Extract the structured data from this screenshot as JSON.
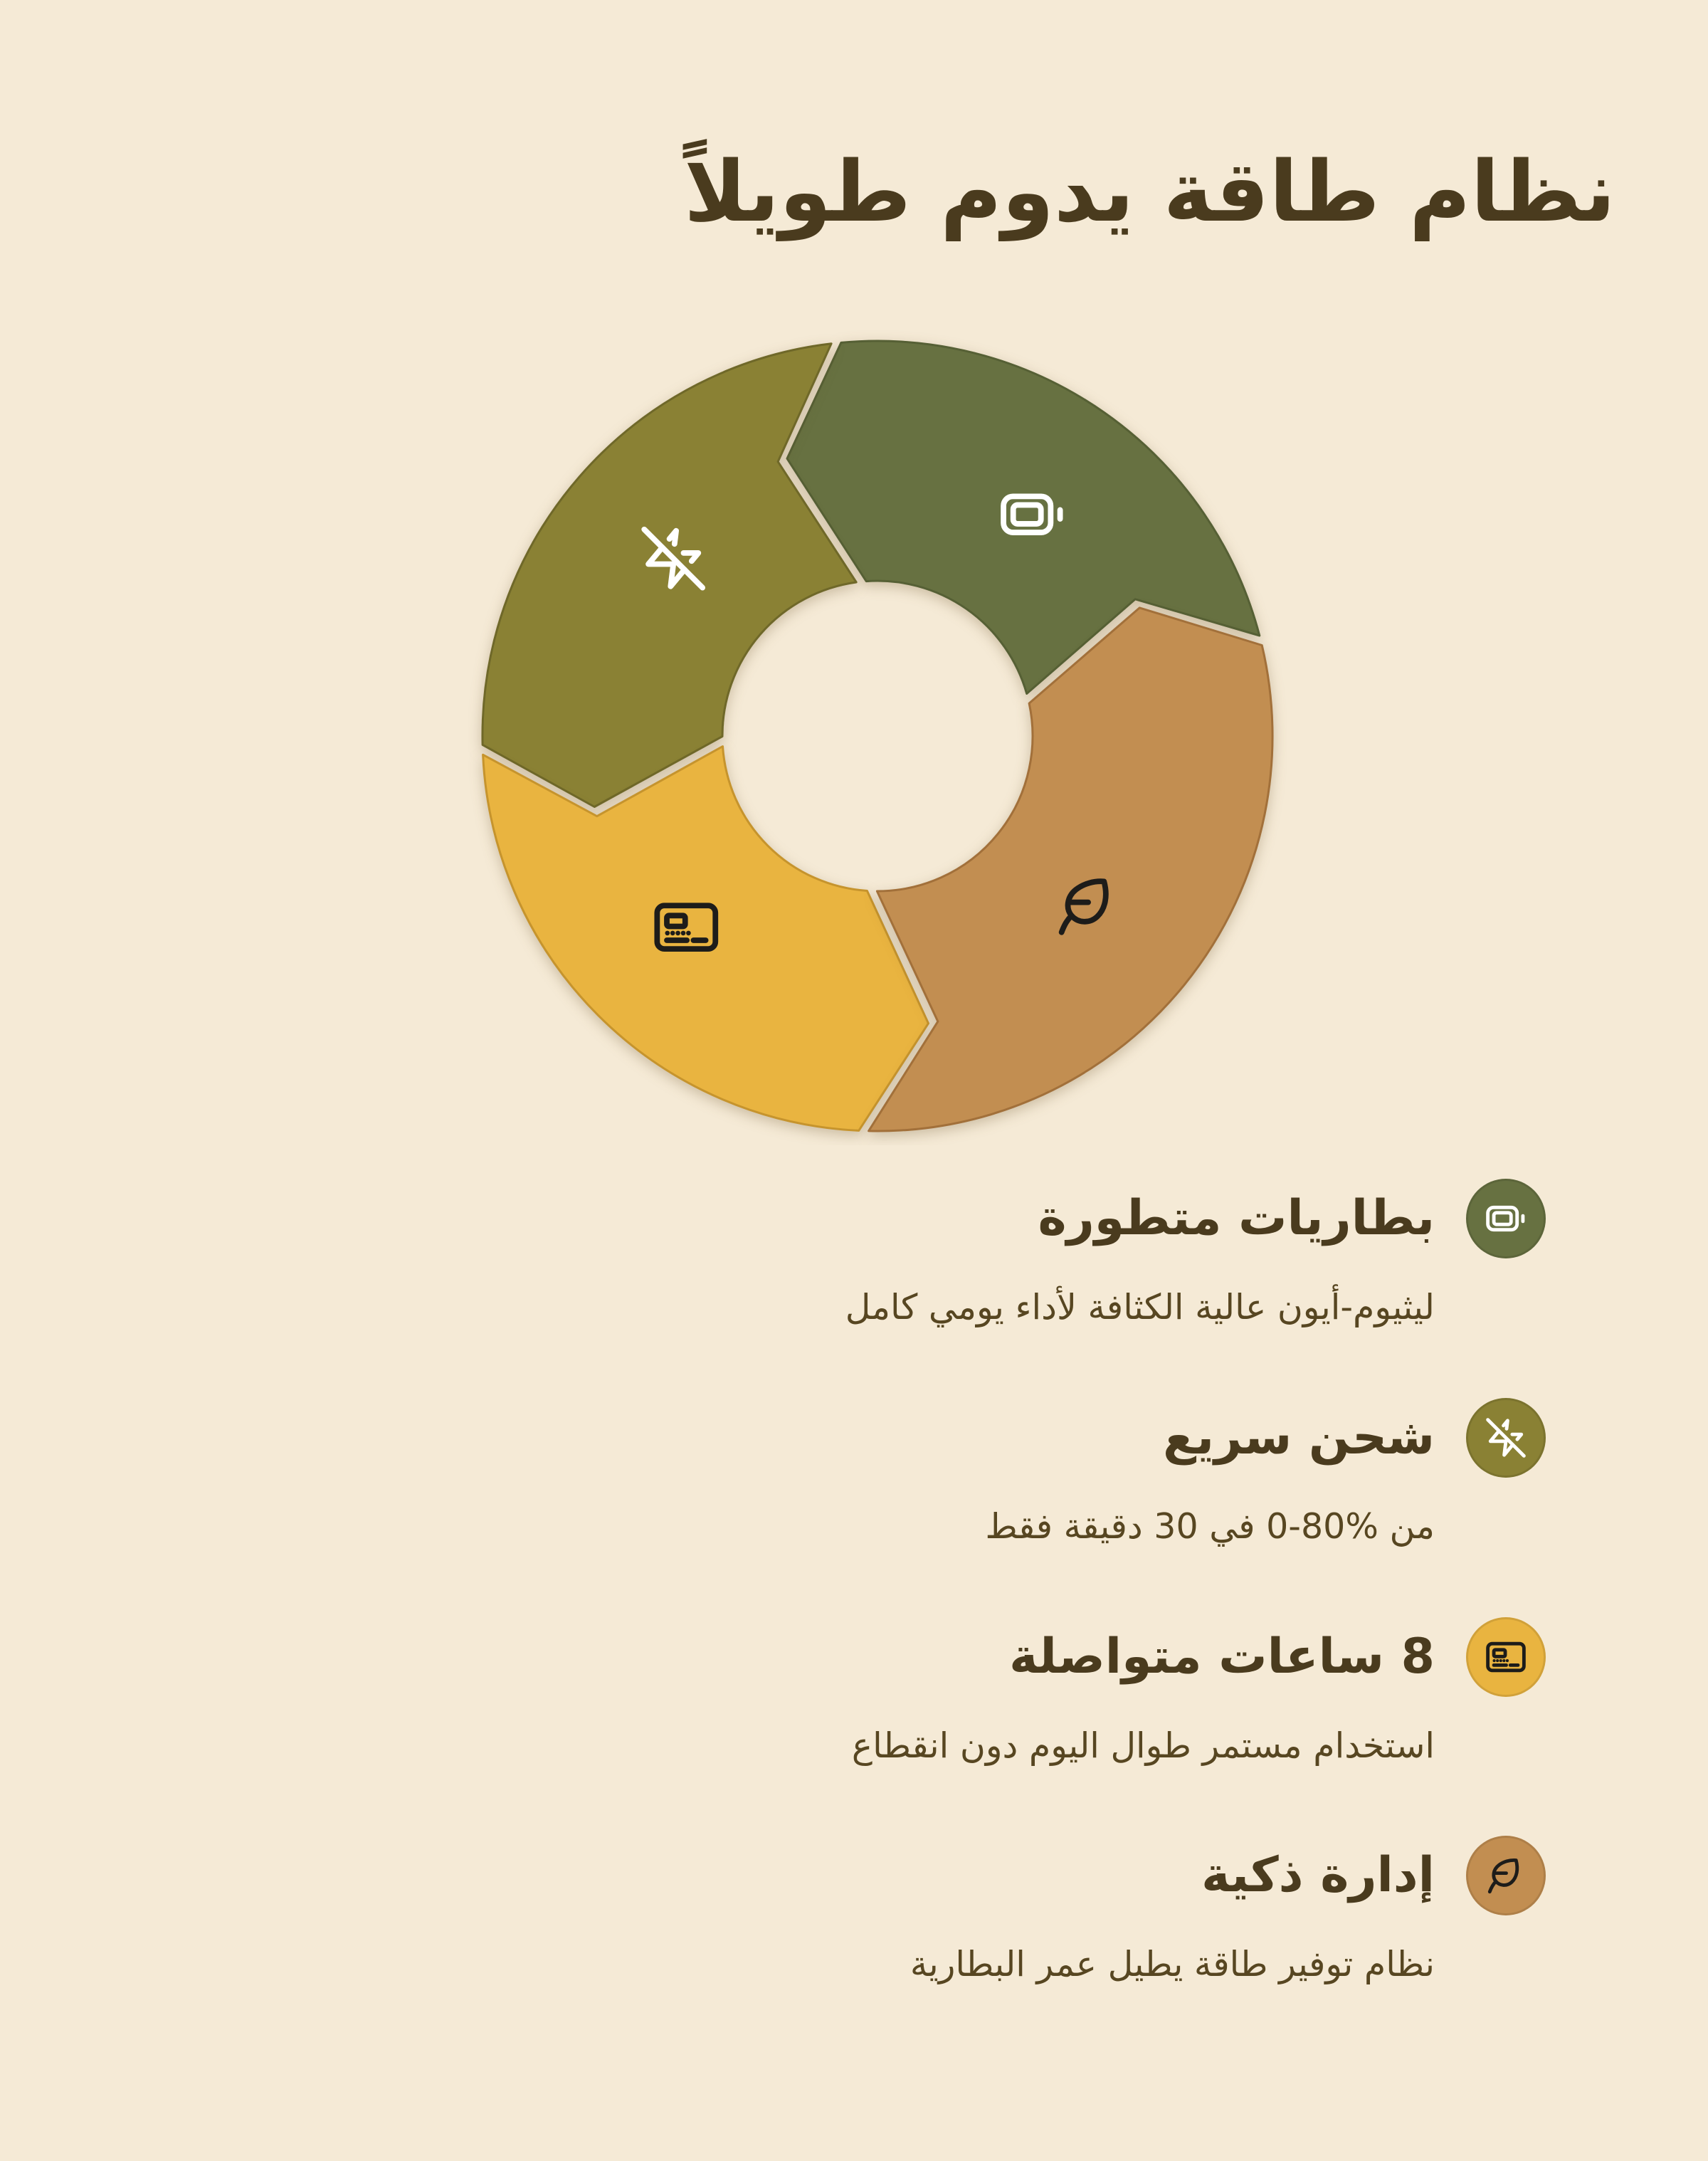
{
  "page": {
    "title": "نظام طاقة يدوم طويلاً",
    "background": "#F5EAD6",
    "heading_color": "#4A3B1E",
    "body_color": "#574621"
  },
  "chart": {
    "type": "cycle-donut",
    "direction": "counterclockwise",
    "segments": [
      {
        "label": "بطاريات متطورة",
        "icon": "battery-icon",
        "color": "#677141",
        "stroke": "#566035",
        "icon_color": "#FFFFFF",
        "start_angle": 14,
        "end_angle": 96
      },
      {
        "label": "شحن سريع",
        "icon": "zap-off-icon",
        "color": "#8A8134",
        "stroke": "#6F6829",
        "icon_color": "#FFFFFF",
        "start_angle": 96,
        "end_angle": 182
      },
      {
        "label": "8 ساعات متواصلة",
        "icon": "meter-icon",
        "color": "#E9B440",
        "stroke": "#C6942D",
        "icon_color": "#1D1C1A",
        "start_angle": 182,
        "end_angle": 268
      },
      {
        "label": "إدارة ذكية",
        "icon": "leaf-icon",
        "color": "#C28E51",
        "stroke": "#A2703A",
        "icon_color": "#1D1C1A",
        "start_angle": 268,
        "end_angle": 374
      }
    ]
  },
  "features": [
    {
      "title": "بطاريات متطورة",
      "subtitle": "ليثيوم-أيون عالية الكثافة لأداء يومي كامل",
      "icon": "battery-icon",
      "badge_color": "#677141",
      "icon_color": "#FFFFFF"
    },
    {
      "title": "شحن سريع",
      "subtitle": "من %80-0 في 30 دقيقة فقط",
      "icon": "zap-off-icon",
      "badge_color": "#8A8134",
      "icon_color": "#FFFFFF"
    },
    {
      "title": "8 ساعات متواصلة",
      "subtitle": "استخدام مستمر طوال اليوم دون انقطاع",
      "icon": "meter-icon",
      "badge_color": "#E9B440",
      "icon_color": "#1D1C1A"
    },
    {
      "title": "إدارة ذكية",
      "subtitle": "نظام توفير طاقة يطيل عمر البطارية",
      "icon": "leaf-icon",
      "badge_color": "#C28E51",
      "icon_color": "#1D1C1A"
    }
  ]
}
